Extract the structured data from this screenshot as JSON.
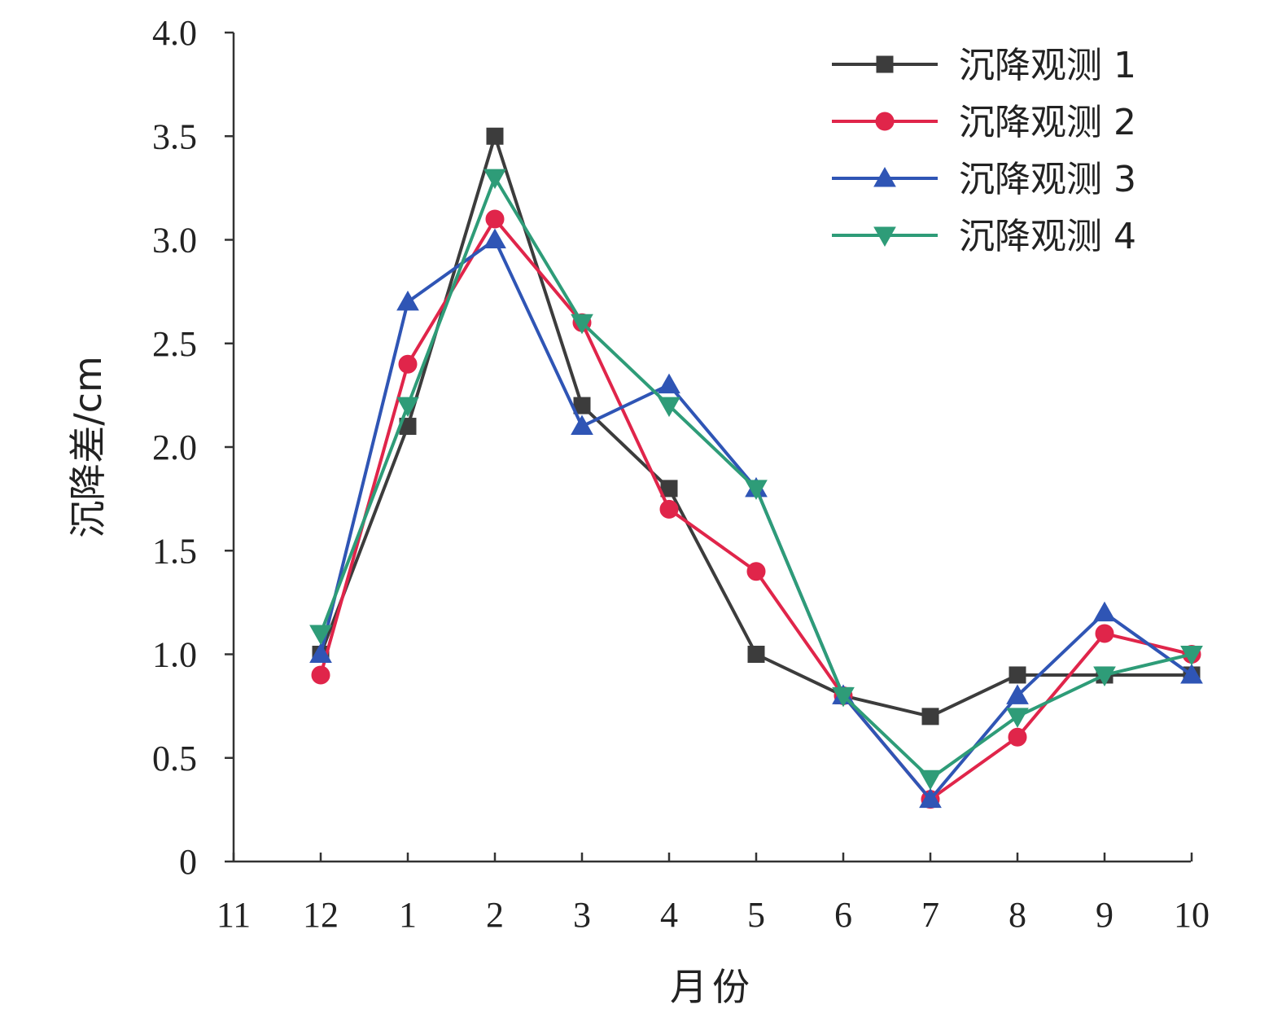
{
  "chart_data": {
    "type": "line",
    "xlabel": "月份",
    "ylabel": "沉降差/cm",
    "categories": [
      "11",
      "12",
      "1",
      "2",
      "3",
      "4",
      "5",
      "6",
      "7",
      "8",
      "9",
      "10"
    ],
    "yticks": [
      "0",
      "0.5",
      "1.0",
      "1.5",
      "2.0",
      "2.5",
      "3.0",
      "3.5",
      "4.0"
    ],
    "ylim": [
      0,
      4.0
    ],
    "grid": false,
    "legend_position": "top-right",
    "series": [
      {
        "name": "沉降观测 1",
        "marker": "square",
        "color": "#3c3c3c",
        "values": [
          null,
          1.0,
          2.1,
          3.5,
          2.2,
          1.8,
          1.0,
          0.8,
          0.7,
          0.9,
          0.9,
          0.9
        ]
      },
      {
        "name": "沉降观测 2",
        "marker": "circle",
        "color": "#e0254a",
        "values": [
          null,
          0.9,
          2.4,
          3.1,
          2.6,
          1.7,
          1.4,
          0.8,
          0.3,
          0.6,
          1.1,
          1.0
        ]
      },
      {
        "name": "沉降观测 3",
        "marker": "triangle-up",
        "color": "#2f55b5",
        "values": [
          null,
          1.0,
          2.7,
          3.0,
          2.1,
          2.3,
          1.8,
          0.8,
          0.3,
          0.8,
          1.2,
          0.9
        ]
      },
      {
        "name": "沉降观测 4",
        "marker": "triangle-down",
        "color": "#2e9c78",
        "values": [
          null,
          1.1,
          2.2,
          3.3,
          2.6,
          2.2,
          1.8,
          0.8,
          0.4,
          0.7,
          0.9,
          1.0
        ]
      }
    ]
  }
}
